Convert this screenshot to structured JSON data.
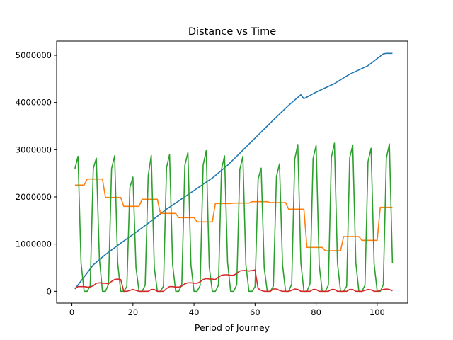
{
  "chart_data": {
    "type": "line",
    "title": "Distance vs Time",
    "xlabel": "Period of Journey",
    "ylabel": "",
    "xlim": [
      -5,
      110
    ],
    "ylim": [
      -250000,
      5300000
    ],
    "xticks": [
      0,
      20,
      40,
      60,
      80,
      100
    ],
    "yticks": [
      0,
      1000000,
      2000000,
      3000000,
      4000000,
      5000000
    ],
    "xtick_labels": [
      "0",
      "20",
      "40",
      "60",
      "80",
      "100"
    ],
    "ytick_labels": [
      "0",
      "1000000",
      "2000000",
      "3000000",
      "4000000",
      "5000000"
    ],
    "grid": false,
    "legend": "none",
    "x": [
      1,
      2,
      3,
      4,
      5,
      6,
      7,
      8,
      9,
      10,
      11,
      12,
      13,
      14,
      15,
      16,
      17,
      18,
      19,
      20,
      21,
      22,
      23,
      24,
      25,
      26,
      27,
      28,
      29,
      30,
      31,
      32,
      33,
      34,
      35,
      36,
      37,
      38,
      39,
      40,
      41,
      42,
      43,
      44,
      45,
      46,
      47,
      48,
      49,
      50,
      51,
      52,
      53,
      54,
      55,
      56,
      57,
      58,
      59,
      60,
      61,
      62,
      63,
      64,
      65,
      66,
      67,
      68,
      69,
      70,
      71,
      72,
      73,
      74,
      75,
      76,
      77,
      78,
      79,
      80,
      81,
      82,
      83,
      84,
      85,
      86,
      87,
      88,
      89,
      90,
      91,
      92,
      93,
      94,
      95,
      96,
      97,
      98,
      99,
      100,
      101,
      102,
      103,
      104,
      105
    ],
    "series": [
      {
        "color": "#1f77b4",
        "values": [
          50000,
          135000,
          220000,
          305000,
          390000,
          475000,
          560000,
          615000,
          670000,
          725000,
          780000,
          828000,
          876000,
          924000,
          972000,
          1020000,
          1066000,
          1112000,
          1158000,
          1204000,
          1250000,
          1298000,
          1346000,
          1394000,
          1442000,
          1490000,
          1540000,
          1590000,
          1640000,
          1690000,
          1740000,
          1784000,
          1828000,
          1872000,
          1916000,
          1960000,
          2004000,
          2048000,
          2092000,
          2136000,
          2180000,
          2224000,
          2268000,
          2312000,
          2356000,
          2400000,
          2454000,
          2508000,
          2562000,
          2616000,
          2670000,
          2734000,
          2798000,
          2862000,
          2926000,
          2990000,
          3054000,
          3118000,
          3182000,
          3246000,
          3310000,
          3374000,
          3438000,
          3502000,
          3566000,
          3630000,
          3692000,
          3754000,
          3816000,
          3878000,
          3940000,
          3996000,
          4052000,
          4108000,
          4164000,
          4080000,
          4115000,
          4150000,
          4185000,
          4220000,
          4250000,
          4280000,
          4310000,
          4340000,
          4370000,
          4400000,
          4440000,
          4480000,
          4520000,
          4560000,
          4600000,
          4630000,
          4660000,
          4690000,
          4720000,
          4750000,
          4780000,
          4830000,
          4880000,
          4930000,
          4980000,
          5030000,
          5040000,
          5040000,
          5040000
        ]
      },
      {
        "color": "#ff7f0e",
        "values": [
          2250000,
          2250000,
          2250000,
          2250000,
          2380000,
          2380000,
          2380000,
          2380000,
          2380000,
          2380000,
          1990000,
          1990000,
          1990000,
          1990000,
          1990000,
          1990000,
          1800000,
          1800000,
          1800000,
          1800000,
          1800000,
          1800000,
          1950000,
          1950000,
          1950000,
          1950000,
          1950000,
          1950000,
          1650000,
          1650000,
          1650000,
          1650000,
          1650000,
          1650000,
          1560000,
          1560000,
          1560000,
          1560000,
          1560000,
          1560000,
          1470000,
          1470000,
          1470000,
          1470000,
          1470000,
          1470000,
          1860000,
          1860000,
          1860000,
          1860000,
          1860000,
          1860000,
          1870000,
          1870000,
          1870000,
          1870000,
          1870000,
          1870000,
          1900000,
          1900000,
          1900000,
          1900000,
          1900000,
          1900000,
          1880000,
          1880000,
          1880000,
          1880000,
          1880000,
          1880000,
          1740000,
          1740000,
          1740000,
          1740000,
          1740000,
          1740000,
          930000,
          930000,
          930000,
          930000,
          930000,
          930000,
          860000,
          860000,
          860000,
          860000,
          860000,
          860000,
          1160000,
          1160000,
          1160000,
          1160000,
          1160000,
          1160000,
          1080000,
          1080000,
          1080000,
          1080000,
          1080000,
          1080000,
          1780000,
          1780000,
          1780000,
          1780000,
          1780000
        ]
      },
      {
        "color": "#2ca02c",
        "values": [
          2600000,
          2860000,
          600000,
          0,
          0,
          120000,
          2600000,
          2820000,
          700000,
          0,
          0,
          150000,
          2600000,
          2870000,
          600000,
          0,
          0,
          100000,
          2200000,
          2420000,
          500000,
          0,
          0,
          130000,
          2450000,
          2880000,
          500000,
          0,
          0,
          110000,
          2620000,
          2900000,
          560000,
          0,
          0,
          140000,
          2670000,
          2940000,
          560000,
          0,
          0,
          120000,
          2680000,
          2980000,
          510000,
          0,
          0,
          130000,
          2580000,
          2870000,
          610000,
          0,
          0,
          140000,
          2580000,
          2860000,
          560000,
          0,
          0,
          100000,
          2380000,
          2610000,
          490000,
          0,
          0,
          110000,
          2430000,
          2700000,
          560000,
          0,
          0,
          150000,
          2800000,
          3110000,
          610000,
          0,
          0,
          160000,
          2810000,
          3090000,
          560000,
          0,
          0,
          130000,
          2840000,
          3140000,
          600000,
          0,
          0,
          110000,
          2830000,
          3100000,
          610000,
          0,
          0,
          130000,
          2750000,
          3030000,
          580000,
          0,
          0,
          140000,
          2820000,
          3120000,
          590000
        ]
      },
      {
        "color": "#d62728",
        "values": [
          60000,
          100000,
          100000,
          100000,
          90000,
          90000,
          120000,
          170000,
          180000,
          170000,
          170000,
          160000,
          210000,
          250000,
          260000,
          250000,
          0,
          0,
          20000,
          40000,
          20000,
          0,
          0,
          0,
          0,
          40000,
          40000,
          0,
          0,
          0,
          60000,
          100000,
          100000,
          90000,
          90000,
          110000,
          160000,
          180000,
          180000,
          170000,
          170000,
          200000,
          250000,
          270000,
          260000,
          260000,
          250000,
          300000,
          340000,
          350000,
          350000,
          340000,
          340000,
          380000,
          430000,
          440000,
          440000,
          430000,
          440000,
          450000,
          60000,
          20000,
          0,
          0,
          0,
          50000,
          50000,
          20000,
          0,
          0,
          0,
          20000,
          50000,
          40000,
          0,
          0,
          0,
          0,
          40000,
          40000,
          0,
          0,
          0,
          0,
          40000,
          40000,
          0,
          0,
          0,
          0,
          40000,
          40000,
          0,
          0,
          0,
          20000,
          40000,
          30000,
          0,
          0,
          20000,
          40000,
          50000,
          40000,
          10000
        ]
      }
    ]
  }
}
